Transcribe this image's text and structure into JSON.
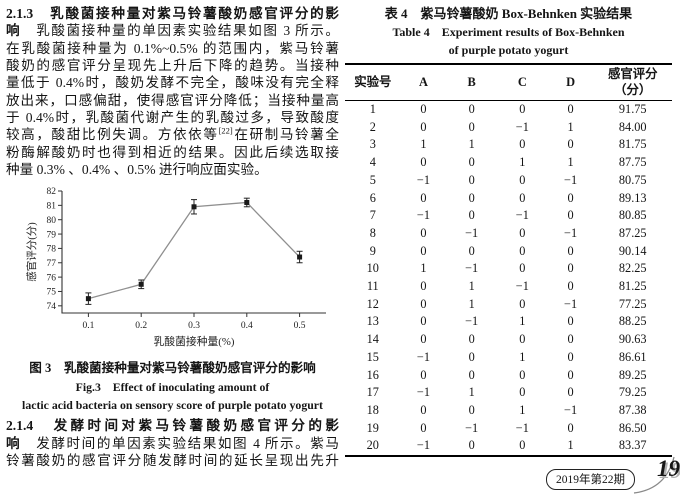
{
  "left": {
    "para1_lines": [
      {
        "just": true,
        "segs": [
          {
            "t": "2.1.3　乳酸菌接种量对紫马铃薯酸奶感官评分的影",
            "b": true
          }
        ]
      },
      {
        "just": true,
        "segs": [
          {
            "t": "响",
            "b": true
          },
          {
            "t": "　乳酸菌接种量的单因素实验结果如图 3 所示。"
          }
        ]
      },
      {
        "just": true,
        "segs": [
          {
            "t": "在乳酸菌接种量为 0.1%~0.5% 的范围内，紫马铃薯"
          }
        ]
      },
      {
        "just": true,
        "segs": [
          {
            "t": "酸奶的感官评分呈现先上升后下降的趋势。当接种"
          }
        ]
      },
      {
        "just": true,
        "segs": [
          {
            "t": "量低于 0.4%时，酸奶发酵不完全，酸味没有完全释"
          }
        ]
      },
      {
        "just": true,
        "segs": [
          {
            "t": "放出来，口感偏甜，使得感官评分降低；当接种量高"
          }
        ]
      },
      {
        "just": true,
        "segs": [
          {
            "t": "于 0.4%时，乳酸菌代谢产生的乳酸过多，导致酸度"
          }
        ]
      },
      {
        "just": true,
        "segs": [
          {
            "t": "较高，酸甜比例失调。方依依等"
          },
          {
            "t": "[22]",
            "sup": true
          },
          {
            "t": "在研制马铃薯全"
          }
        ]
      },
      {
        "just": true,
        "segs": [
          {
            "t": "粉酶解酸奶时也得到相近的结果。因此后续选取接"
          }
        ]
      },
      {
        "just": false,
        "segs": [
          {
            "t": "种量 0.3% 、0.4% 、0.5% 进行响应面实验。"
          }
        ]
      }
    ],
    "caption": {
      "zh": "图 3　乳酸菌接种量对紫马铃薯酸奶感官评分的影响",
      "en1": "Fig.3　Effect of inoculating amount of",
      "en2": "lactic acid bacteria on sensory score of purple potato yogurt"
    },
    "para2_lines": [
      {
        "just": true,
        "segs": [
          {
            "t": "2.1.4　发酵时间对紫马铃薯酸奶感官评分的影",
            "b": true
          }
        ]
      },
      {
        "just": true,
        "segs": [
          {
            "t": "响",
            "b": true
          },
          {
            "t": "　发酵时间的单因素实验结果如图 4 所示。紫马"
          }
        ]
      },
      {
        "just": true,
        "segs": [
          {
            "t": "铃薯酸奶的感官评分随发酵时间的延长呈现出先升"
          }
        ]
      }
    ]
  },
  "right": {
    "title_zh": "表 4　紫马铃薯酸奶 Box-Behnken 实验结果",
    "title_en1": "Table 4　Experiment results of Box-Behnken",
    "title_en2": "of purple potato yogurt",
    "table": {
      "headers": [
        "实验号",
        "A",
        "B",
        "C",
        "D",
        "感官评分\n（分）"
      ],
      "rows": [
        [
          "1",
          "0",
          "0",
          "0",
          "0",
          "91.75"
        ],
        [
          "2",
          "0",
          "0",
          "−1",
          "1",
          "84.00"
        ],
        [
          "3",
          "1",
          "1",
          "0",
          "0",
          "81.75"
        ],
        [
          "4",
          "0",
          "0",
          "1",
          "1",
          "87.75"
        ],
        [
          "5",
          "−1",
          "0",
          "0",
          "−1",
          "80.75"
        ],
        [
          "6",
          "0",
          "0",
          "0",
          "0",
          "89.13"
        ],
        [
          "7",
          "−1",
          "0",
          "−1",
          "0",
          "80.85"
        ],
        [
          "8",
          "0",
          "−1",
          "0",
          "−1",
          "87.25"
        ],
        [
          "9",
          "0",
          "0",
          "0",
          "0",
          "90.14"
        ],
        [
          "10",
          "1",
          "−1",
          "0",
          "0",
          "82.25"
        ],
        [
          "11",
          "0",
          "1",
          "−1",
          "0",
          "81.25"
        ],
        [
          "12",
          "0",
          "1",
          "0",
          "−1",
          "77.25"
        ],
        [
          "13",
          "0",
          "−1",
          "1",
          "0",
          "88.25"
        ],
        [
          "14",
          "0",
          "0",
          "0",
          "0",
          "90.63"
        ],
        [
          "15",
          "−1",
          "0",
          "1",
          "0",
          "86.61"
        ],
        [
          "16",
          "0",
          "0",
          "0",
          "0",
          "89.25"
        ],
        [
          "17",
          "−1",
          "1",
          "0",
          "0",
          "79.25"
        ],
        [
          "18",
          "0",
          "0",
          "1",
          "−1",
          "87.38"
        ],
        [
          "19",
          "0",
          "−1",
          "−1",
          "0",
          "86.50"
        ],
        [
          "20",
          "−1",
          "0",
          "0",
          "1",
          "83.37"
        ]
      ]
    }
  },
  "footer": {
    "issue": "2019年第22期",
    "page": "19"
  },
  "chart_data": {
    "type": "line",
    "title": "",
    "x": [
      0.1,
      0.2,
      0.3,
      0.4,
      0.5
    ],
    "series": [
      {
        "name": "感官评分",
        "values": [
          74.5,
          75.5,
          80.9,
          81.2,
          77.4
        ],
        "errors": [
          0.4,
          0.3,
          0.5,
          0.3,
          0.4
        ]
      }
    ],
    "xlabel": "乳酸菌接种量(%)",
    "ylabel": "感官评分(分)",
    "ylim": [
      73.5,
      82
    ],
    "yticks": [
      74,
      75,
      76,
      77,
      78,
      79,
      80,
      81,
      82
    ],
    "xticks": [
      "0.1",
      "0.2",
      "0.3",
      "0.4",
      "0.5"
    ],
    "grid": false,
    "legend": "none",
    "marker": "square",
    "line_color": "#8f8f8f",
    "marker_color": "#1a1a1a",
    "axis_color": "#333333"
  }
}
